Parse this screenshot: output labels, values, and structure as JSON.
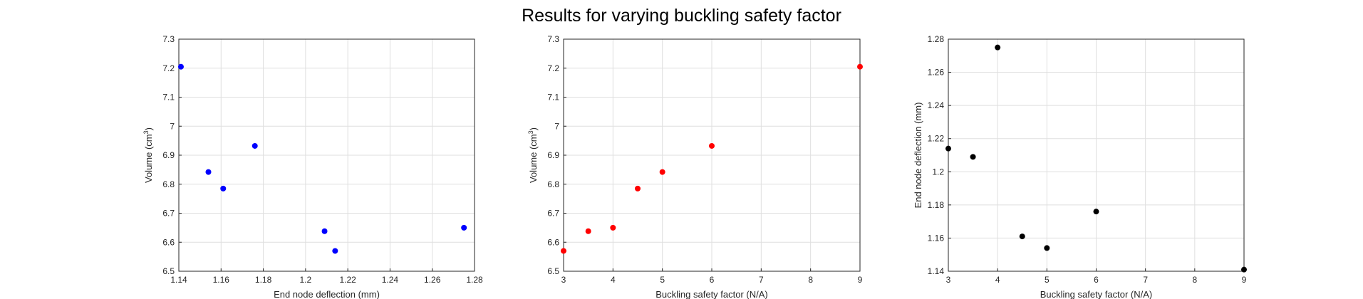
{
  "figure": {
    "title": "Results for varying buckling safety factor"
  },
  "chart_data": [
    {
      "type": "scatter",
      "color": "#0000ff",
      "xlabel": "End node deflection (mm)",
      "ylabel": {
        "text": "Volume (cm",
        "sup": "3",
        "tail": ")"
      },
      "xlim": [
        1.14,
        1.28
      ],
      "ylim": [
        6.5,
        7.3
      ],
      "xticks": [
        "1.14",
        "1.16",
        "1.18",
        "1.2",
        "1.22",
        "1.24",
        "1.26",
        "1.28"
      ],
      "yticks": [
        "6.5",
        "6.6",
        "6.7",
        "6.8",
        "6.9",
        "7",
        "7.1",
        "7.2",
        "7.3"
      ],
      "grid": true,
      "points": [
        {
          "x": 1.141,
          "y": 7.205
        },
        {
          "x": 1.154,
          "y": 6.842
        },
        {
          "x": 1.161,
          "y": 6.785
        },
        {
          "x": 1.176,
          "y": 6.932
        },
        {
          "x": 1.209,
          "y": 6.638
        },
        {
          "x": 1.214,
          "y": 6.57
        },
        {
          "x": 1.275,
          "y": 6.65
        }
      ]
    },
    {
      "type": "scatter",
      "color": "#ff0000",
      "xlabel": "Buckling safety factor (N/A)",
      "ylabel": {
        "text": "Volume (cm",
        "sup": "3",
        "tail": ")"
      },
      "xlim": [
        3,
        9
      ],
      "ylim": [
        6.5,
        7.3
      ],
      "xticks": [
        "3",
        "4",
        "5",
        "6",
        "7",
        "8",
        "9"
      ],
      "yticks": [
        "6.5",
        "6.6",
        "6.7",
        "6.8",
        "6.9",
        "7",
        "7.1",
        "7.2",
        "7.3"
      ],
      "grid": true,
      "points": [
        {
          "x": 3,
          "y": 6.57
        },
        {
          "x": 3.5,
          "y": 6.638
        },
        {
          "x": 4,
          "y": 6.65
        },
        {
          "x": 4.5,
          "y": 6.785
        },
        {
          "x": 5,
          "y": 6.842
        },
        {
          "x": 6,
          "y": 6.932
        },
        {
          "x": 9,
          "y": 7.205
        }
      ]
    },
    {
      "type": "scatter",
      "color": "#000000",
      "xlabel": "Buckling safety factor (N/A)",
      "ylabel": {
        "text": "End node deflection (mm)",
        "sup": "",
        "tail": ""
      },
      "xlim": [
        3,
        9
      ],
      "ylim": [
        1.14,
        1.28
      ],
      "xticks": [
        "3",
        "4",
        "5",
        "6",
        "7",
        "8",
        "9"
      ],
      "yticks": [
        "1.14",
        "1.16",
        "1.18",
        "1.2",
        "1.22",
        "1.24",
        "1.26",
        "1.28"
      ],
      "grid": true,
      "points": [
        {
          "x": 3,
          "y": 1.214
        },
        {
          "x": 3.5,
          "y": 1.209
        },
        {
          "x": 4,
          "y": 1.275
        },
        {
          "x": 4.5,
          "y": 1.161
        },
        {
          "x": 5,
          "y": 1.154
        },
        {
          "x": 6,
          "y": 1.176
        },
        {
          "x": 9,
          "y": 1.141
        }
      ]
    }
  ]
}
